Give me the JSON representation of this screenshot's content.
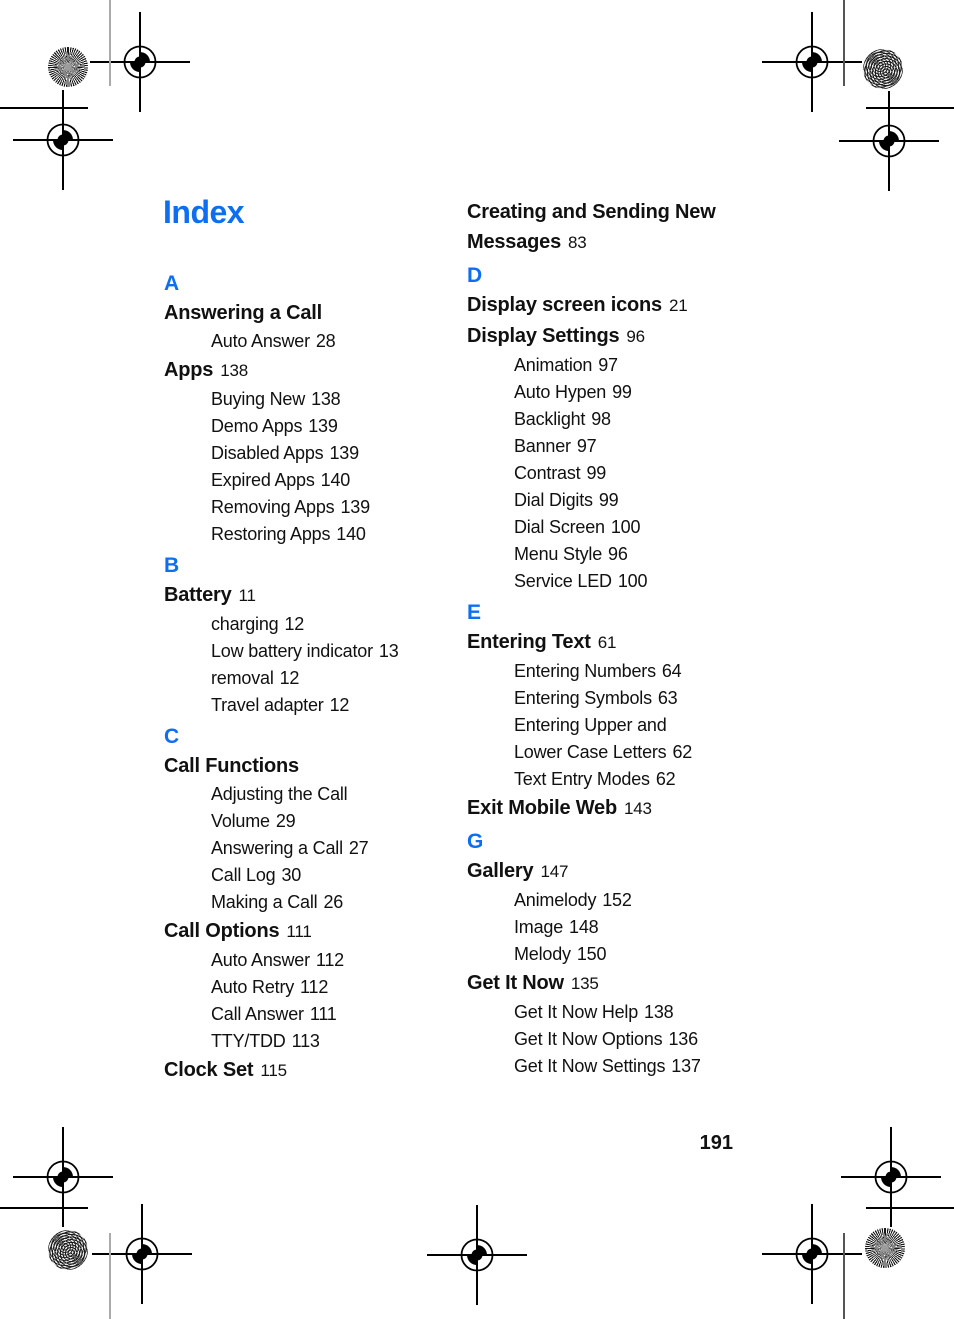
{
  "page": {
    "title": "Index",
    "page_number": "191"
  },
  "print_marks": {
    "registration_target_icon": "crosshair-circle",
    "starburst_patch_icon": "radial-line-halftone-circle",
    "moire_patch_icon": "concentric-ring-halftone-circle",
    "crop_line": "short-rule"
  },
  "columns": {
    "left": [
      {
        "t": "letter",
        "text": "A"
      },
      {
        "t": "entry",
        "text": "Answering a Call",
        "page": ""
      },
      {
        "t": "sub",
        "text": "Auto Answer",
        "page": "28"
      },
      {
        "t": "entry",
        "text": "Apps",
        "page": "138"
      },
      {
        "t": "sub",
        "text": "Buying New",
        "page": "138"
      },
      {
        "t": "sub",
        "text": "Demo Apps",
        "page": "139"
      },
      {
        "t": "sub",
        "text": "Disabled Apps",
        "page": "139"
      },
      {
        "t": "sub",
        "text": "Expired Apps",
        "page": "140"
      },
      {
        "t": "sub",
        "text": "Removing Apps",
        "page": "139"
      },
      {
        "t": "sub",
        "text": "Restoring Apps",
        "page": "140"
      },
      {
        "t": "letter",
        "text": "B"
      },
      {
        "t": "entry",
        "text": "Battery",
        "page": "11"
      },
      {
        "t": "sub",
        "text": "charging",
        "page": "12"
      },
      {
        "t": "sub",
        "text": "Low battery indicator",
        "page": "13"
      },
      {
        "t": "sub",
        "text": "removal",
        "page": "12"
      },
      {
        "t": "sub",
        "text": "Travel adapter",
        "page": "12"
      },
      {
        "t": "letter",
        "text": "C"
      },
      {
        "t": "entry",
        "text": "Call Functions",
        "page": ""
      },
      {
        "t": "sub",
        "text": "Adjusting the Call",
        "page": ""
      },
      {
        "t": "sub",
        "text": "Volume",
        "page": "29"
      },
      {
        "t": "sub",
        "text": "Answering a Call",
        "page": "27"
      },
      {
        "t": "sub",
        "text": "Call Log",
        "page": "30"
      },
      {
        "t": "sub",
        "text": "Making a Call",
        "page": "26"
      },
      {
        "t": "entry",
        "text": "Call Options",
        "page": "111"
      },
      {
        "t": "sub",
        "text": "Auto Answer",
        "page": "112"
      },
      {
        "t": "sub",
        "text": "Auto Retry",
        "page": "112"
      },
      {
        "t": "sub",
        "text": "Call Answer",
        "page": "111"
      },
      {
        "t": "sub",
        "text": "TTY/TDD",
        "page": "113"
      },
      {
        "t": "entry",
        "text": "Clock Set",
        "page": "115"
      }
    ],
    "right": [
      {
        "t": "entry",
        "text": "Creating and Sending New",
        "page": ""
      },
      {
        "t": "entry",
        "text": "Messages",
        "page": "83"
      },
      {
        "t": "letter",
        "text": "D"
      },
      {
        "t": "entry",
        "text": "Display screen icons",
        "page": "21"
      },
      {
        "t": "entry",
        "text": "Display Settings",
        "page": "96"
      },
      {
        "t": "sub",
        "text": "Animation",
        "page": "97"
      },
      {
        "t": "sub",
        "text": "Auto Hypen",
        "page": "99"
      },
      {
        "t": "sub",
        "text": "Backlight",
        "page": "98"
      },
      {
        "t": "sub",
        "text": "Banner",
        "page": "97"
      },
      {
        "t": "sub",
        "text": "Contrast",
        "page": "99"
      },
      {
        "t": "sub",
        "text": "Dial Digits",
        "page": "99"
      },
      {
        "t": "sub",
        "text": "Dial Screen",
        "page": "100"
      },
      {
        "t": "sub",
        "text": "Menu Style",
        "page": "96"
      },
      {
        "t": "sub",
        "text": "Service LED",
        "page": "100"
      },
      {
        "t": "letter",
        "text": "E"
      },
      {
        "t": "entry",
        "text": "Entering Text",
        "page": "61"
      },
      {
        "t": "sub",
        "text": "Entering Numbers",
        "page": "64"
      },
      {
        "t": "sub",
        "text": "Entering Symbols",
        "page": "63"
      },
      {
        "t": "sub",
        "text": "Entering Upper and",
        "page": ""
      },
      {
        "t": "sub",
        "text": "Lower Case Letters",
        "page": "62"
      },
      {
        "t": "sub",
        "text": "Text Entry Modes",
        "page": "62"
      },
      {
        "t": "entry",
        "text": "Exit Mobile Web",
        "page": "143"
      },
      {
        "t": "letter",
        "text": "G"
      },
      {
        "t": "entry",
        "text": "Gallery",
        "page": "147"
      },
      {
        "t": "sub",
        "text": "Animelody",
        "page": "152"
      },
      {
        "t": "sub",
        "text": "Image",
        "page": "148"
      },
      {
        "t": "sub",
        "text": "Melody",
        "page": "150"
      },
      {
        "t": "entry",
        "text": "Get It Now",
        "page": "135"
      },
      {
        "t": "sub",
        "text": "Get It Now Help",
        "page": "138"
      },
      {
        "t": "sub",
        "text": "Get It Now Options",
        "page": "136"
      },
      {
        "t": "sub",
        "text": "Get It Now Settings",
        "page": "137"
      }
    ]
  }
}
